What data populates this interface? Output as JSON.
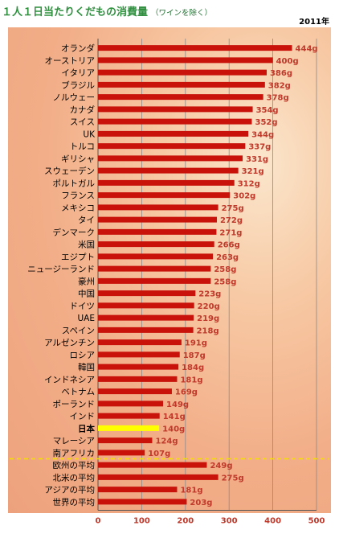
{
  "title": "１人１日当たりくだもの消費量",
  "subtitle": "（ワインを除く）",
  "year": "2011年",
  "colors": {
    "bar": "#c8120a",
    "highlight_bar": "#ffff00",
    "highlight_label": "#ff0000",
    "title": "#2f8f3f",
    "tick": "#c0392b"
  },
  "chart_data": {
    "type": "bar",
    "orientation": "horizontal",
    "unit": "g",
    "xlim": [
      0,
      500
    ],
    "xticks": [
      0,
      100,
      200,
      300,
      400,
      500
    ],
    "grid": true,
    "categories": [
      "オランダ",
      "オーストリア",
      "イタリア",
      "ブラジル",
      "ノルウェー",
      "カナダ",
      "スイス",
      "UK",
      "トルコ",
      "ギリシャ",
      "スウェーデン",
      "ポルトガル",
      "フランス",
      "メキシコ",
      "タイ",
      "デンマーク",
      "米国",
      "エジプト",
      "ニュージーランド",
      "豪州",
      "中国",
      "ドイツ",
      "UAE",
      "スペイン",
      "アルゼンチン",
      "ロシア",
      "韓国",
      "インドネシア",
      "ベトナム",
      "ポーランド",
      "インド",
      "日本",
      "マレーシア",
      "南アフリカ",
      "欧州の平均",
      "北米の平均",
      "アジアの平均",
      "世界の平均"
    ],
    "values": [
      444,
      400,
      386,
      382,
      378,
      354,
      352,
      344,
      337,
      331,
      321,
      312,
      302,
      275,
      272,
      271,
      266,
      263,
      258,
      258,
      223,
      220,
      219,
      218,
      191,
      187,
      184,
      181,
      169,
      149,
      141,
      140,
      124,
      107,
      249,
      275,
      181,
      203
    ],
    "labels": [
      "444g",
      "400g",
      "386g",
      "382g",
      "378g",
      "354g",
      "352g",
      "344g",
      "337g",
      "331g",
      "321g",
      "312g",
      "302g",
      "275g",
      "272g",
      "271g",
      "266g",
      "263g",
      "258g",
      "258g",
      "223g",
      "220g",
      "219g",
      "218g",
      "191g",
      "187g",
      "184g",
      "181g",
      "169g",
      "149g",
      "141g",
      "140g",
      "124g",
      "107g",
      "249g",
      "275g",
      "181g",
      "203g"
    ],
    "highlight": "日本",
    "separator_after": "南アフリカ"
  }
}
